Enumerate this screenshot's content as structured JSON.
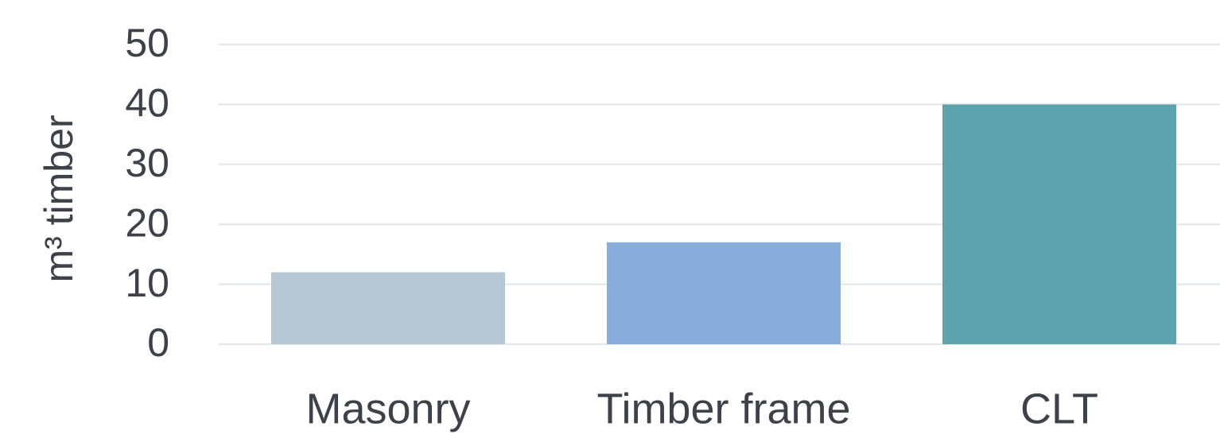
{
  "chart_data": {
    "type": "bar",
    "y_label": "m³ timber",
    "categories": [
      "Masonry",
      "Timber frame",
      "CLT"
    ],
    "values": [
      12,
      17,
      40
    ],
    "colors": [
      "#b8c7d4",
      "#8aaedc",
      "#5ca3ad"
    ],
    "ylim": [
      0,
      50
    ],
    "yticks": [
      0,
      10,
      20,
      30,
      40,
      50
    ],
    "grid": true
  }
}
